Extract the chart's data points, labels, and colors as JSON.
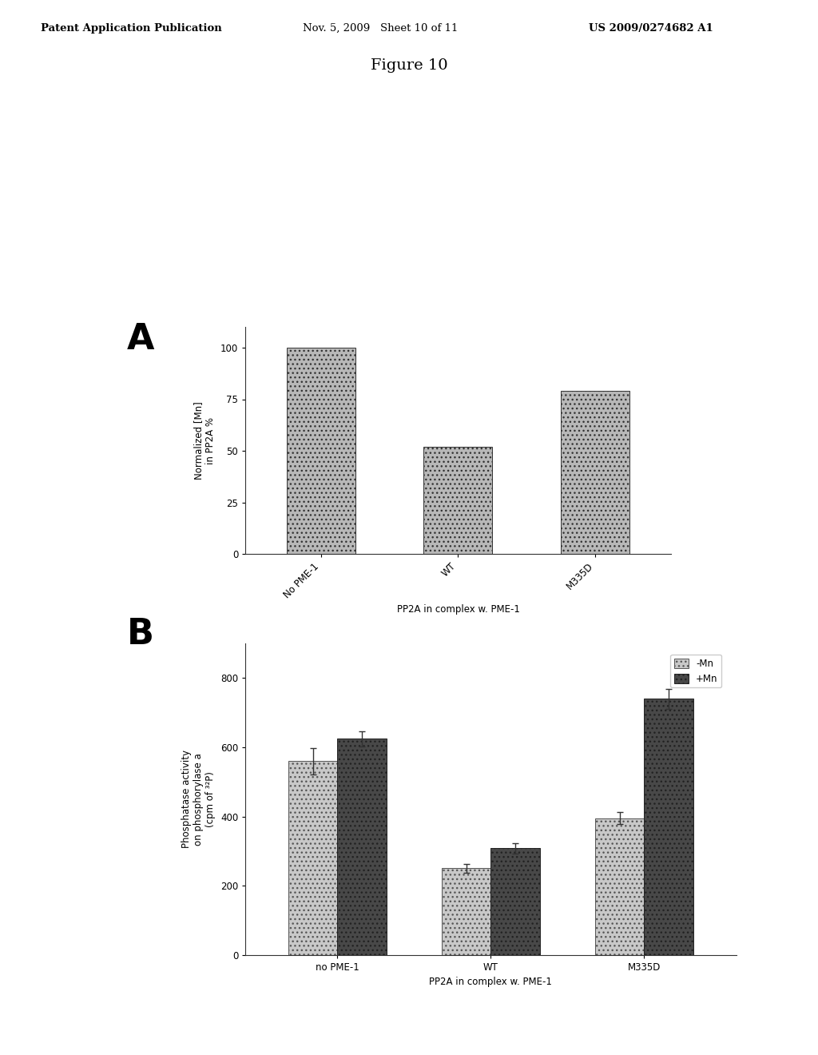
{
  "header_left": "Patent Application Publication",
  "header_mid": "Nov. 5, 2009   Sheet 10 of 11",
  "header_right": "US 2009/0274682 A1",
  "figure_title": "Figure 10",
  "panel_A_label": "A",
  "panel_A_categories": [
    "No PME-1",
    "WT",
    "M335D"
  ],
  "panel_A_values": [
    100,
    52,
    79
  ],
  "panel_A_bar_color": "#b8b8b8",
  "panel_A_ylabel_line1": "Normalized [Mn]",
  "panel_A_ylabel_line2": "in PP2A %",
  "panel_A_xlabel": "PP2A in complex w. PME-1",
  "panel_A_ylim": [
    0,
    110
  ],
  "panel_A_yticks": [
    0,
    25,
    50,
    75,
    100
  ],
  "panel_B_label": "B",
  "panel_B_categories": [
    "no PME-1",
    "WT",
    "M335D"
  ],
  "panel_B_values_minus_mn": [
    560,
    250,
    395
  ],
  "panel_B_values_plus_mn": [
    625,
    308,
    740
  ],
  "panel_B_errors_minus_mn": [
    38,
    12,
    18
  ],
  "panel_B_errors_plus_mn": [
    22,
    15,
    28
  ],
  "panel_B_color_minus": "#c8c8c8",
  "panel_B_color_plus": "#484848",
  "panel_B_ylabel_line1": "Phosphatase activity",
  "panel_B_ylabel_line2": "on phosphorylase a",
  "panel_B_ylabel_line3": "(cpm of ³²P)",
  "panel_B_xlabel": "PP2A in complex w. PME-1",
  "panel_B_ylim": [
    0,
    900
  ],
  "panel_B_yticks": [
    0,
    200,
    400,
    600,
    800
  ],
  "panel_B_legend_minus": "-Mn",
  "panel_B_legend_plus": "+Mn",
  "bg_color": "#ffffff",
  "bar_width": 0.32
}
